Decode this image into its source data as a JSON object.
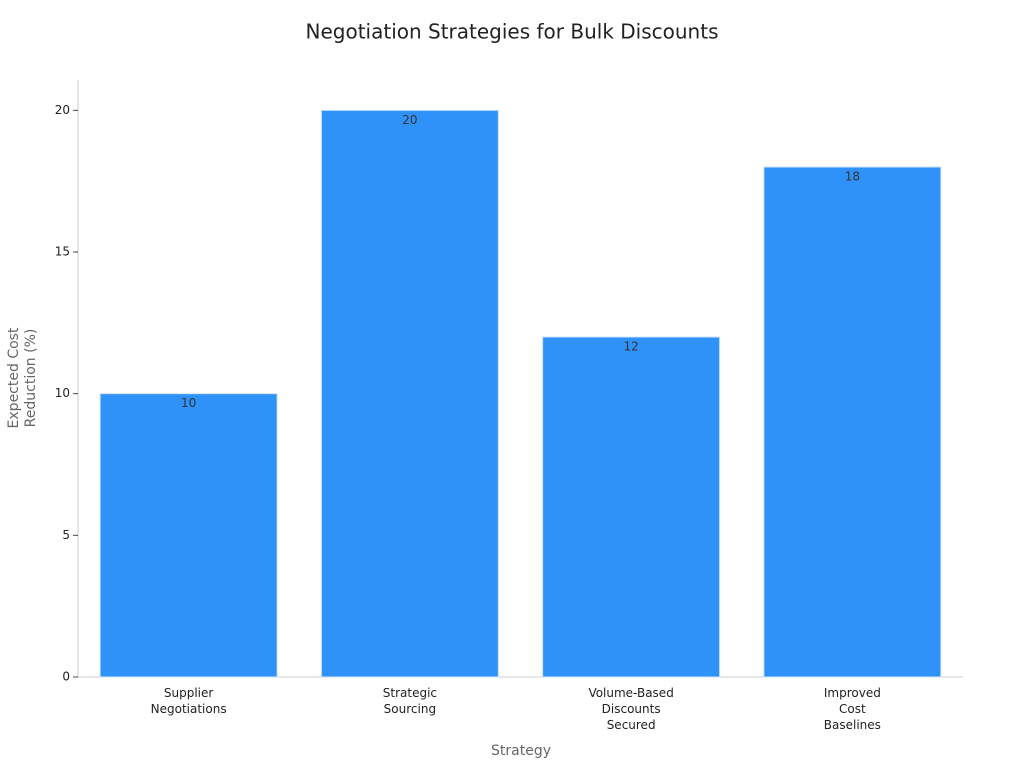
{
  "chart_data": {
    "type": "bar",
    "title": "Negotiation Strategies for Bulk Discounts",
    "x_label": "Strategy",
    "y_label": "Expected Cost Reduction (%)",
    "categories": [
      "Supplier Negotiations",
      "Strategic Sourcing",
      "Volume-Based Discounts Secured",
      "Improved Cost Baselines"
    ],
    "values": [
      10,
      20,
      12,
      18
    ],
    "color": "#2f92f8",
    "ylim": [
      0,
      21
    ],
    "yticks": [
      0,
      5,
      10,
      15,
      20
    ],
    "grid": false
  }
}
